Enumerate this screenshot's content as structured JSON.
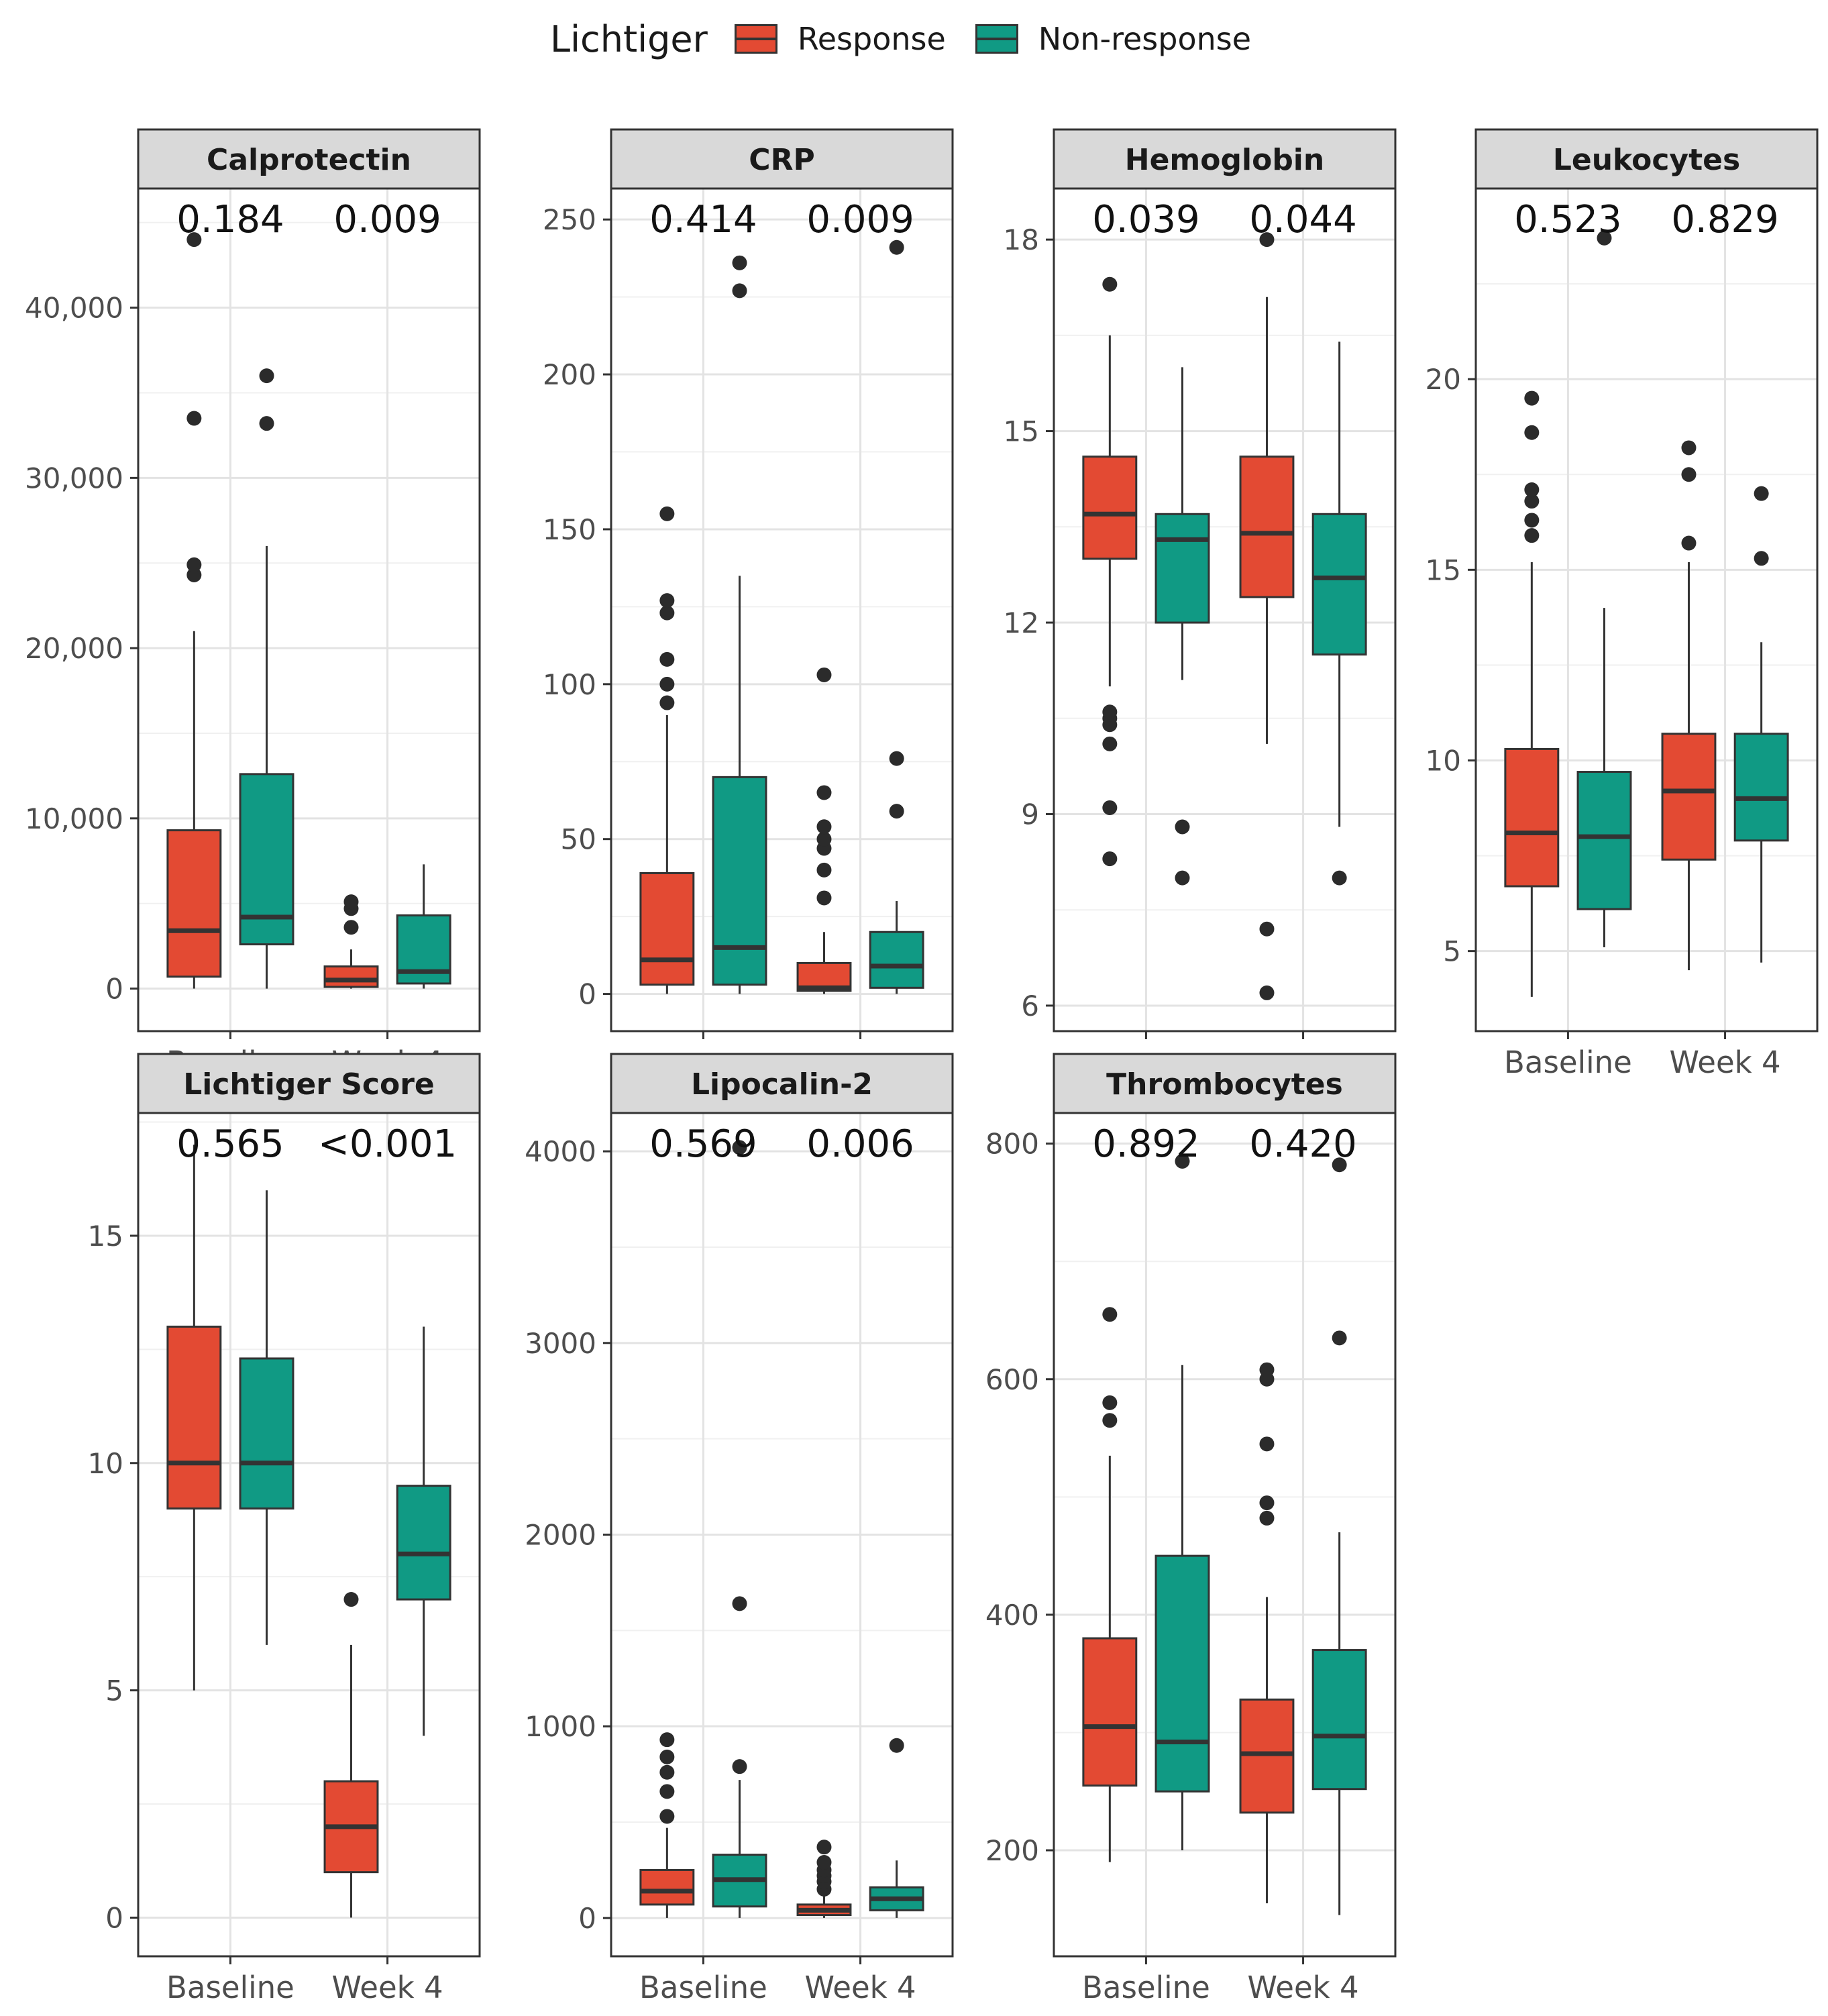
{
  "legend": {
    "title": "Lichtiger",
    "items": [
      {
        "label": "Response",
        "color": "#E34A33"
      },
      {
        "label": "Non-response",
        "color": "#109A84"
      }
    ]
  },
  "chart_data": [
    {
      "type": "box",
      "title": "Calprotectin",
      "categories": [
        "Baseline",
        "Week 4"
      ],
      "p_values": [
        "0.184",
        "0.009"
      ],
      "ylim": [
        -2500,
        47000
      ],
      "y_ticks": [
        0,
        10000,
        20000,
        30000,
        40000
      ],
      "y_tick_labels": [
        "0",
        "10,000",
        "20,000",
        "30,000",
        "40,000"
      ],
      "series": [
        {
          "name": "Response",
          "boxes": [
            {
              "low": 0,
              "q1": 700,
              "median": 3400,
              "q3": 9300,
              "high": 21000,
              "outliers": [
                24300,
                24900,
                33500,
                44000
              ]
            },
            {
              "low": 0,
              "q1": 100,
              "median": 500,
              "q3": 1300,
              "high": 2300,
              "outliers": [
                3600,
                4700,
                5100
              ]
            }
          ]
        },
        {
          "name": "Non-response",
          "boxes": [
            {
              "low": 0,
              "q1": 2600,
              "median": 4200,
              "q3": 12600,
              "high": 26000,
              "outliers": [
                33200,
                36000
              ]
            },
            {
              "low": 0,
              "q1": 300,
              "median": 1000,
              "q3": 4300,
              "high": 7300,
              "outliers": []
            }
          ]
        }
      ]
    },
    {
      "type": "box",
      "title": "CRP",
      "categories": [
        "Baseline",
        "Week 4"
      ],
      "p_values": [
        "0.414",
        "0.009"
      ],
      "ylim": [
        -12,
        260
      ],
      "y_ticks": [
        0,
        50,
        100,
        150,
        200,
        250
      ],
      "y_tick_labels": [
        "0",
        "50",
        "100",
        "150",
        "200",
        "250"
      ],
      "series": [
        {
          "name": "Response",
          "boxes": [
            {
              "low": 0,
              "q1": 3,
              "median": 11,
              "q3": 39,
              "high": 90,
              "outliers": [
                94,
                100,
                108,
                123,
                127,
                155
              ]
            },
            {
              "low": 0,
              "q1": 1,
              "median": 2,
              "q3": 10,
              "high": 20,
              "outliers": [
                31,
                40,
                47,
                50,
                54,
                65,
                103
              ]
            }
          ]
        },
        {
          "name": "Non-response",
          "boxes": [
            {
              "low": 0,
              "q1": 3,
              "median": 15,
              "q3": 70,
              "high": 135,
              "outliers": [
                227,
                236
              ]
            },
            {
              "low": 0,
              "q1": 2,
              "median": 9,
              "q3": 20,
              "high": 30,
              "outliers": [
                59,
                76,
                241
              ]
            }
          ]
        }
      ]
    },
    {
      "type": "box",
      "title": "Hemoglobin",
      "categories": [
        "Baseline",
        "Week 4"
      ],
      "p_values": [
        "0.039",
        "0.044"
      ],
      "ylim": [
        5.6,
        18.8
      ],
      "y_ticks": [
        6,
        9,
        12,
        15,
        18
      ],
      "y_tick_labels": [
        "6",
        "9",
        "12",
        "15",
        "18"
      ],
      "series": [
        {
          "name": "Response",
          "boxes": [
            {
              "low": 11.0,
              "q1": 13.0,
              "median": 13.7,
              "q3": 14.6,
              "high": 16.5,
              "outliers": [
                8.3,
                9.1,
                10.1,
                10.4,
                10.5,
                10.6,
                17.3
              ]
            },
            {
              "low": 10.1,
              "q1": 12.4,
              "median": 13.4,
              "q3": 14.6,
              "high": 17.1,
              "outliers": [
                6.2,
                7.2,
                18.0
              ]
            }
          ]
        },
        {
          "name": "Non-response",
          "boxes": [
            {
              "low": 11.1,
              "q1": 12.0,
              "median": 13.3,
              "q3": 13.7,
              "high": 16.0,
              "outliers": [
                8.0,
                8.8
              ]
            },
            {
              "low": 8.8,
              "q1": 11.5,
              "median": 12.7,
              "q3": 13.7,
              "high": 16.4,
              "outliers": [
                8.0
              ]
            }
          ]
        }
      ]
    },
    {
      "type": "box",
      "title": "Leukocytes",
      "categories": [
        "Baseline",
        "Week 4"
      ],
      "p_values": [
        "0.523",
        "0.829"
      ],
      "ylim": [
        2.9,
        25.0
      ],
      "y_ticks": [
        5,
        10,
        15,
        20
      ],
      "y_tick_labels": [
        "5",
        "10",
        "15",
        "20"
      ],
      "series": [
        {
          "name": "Response",
          "boxes": [
            {
              "low": 3.8,
              "q1": 6.7,
              "median": 8.1,
              "q3": 10.3,
              "high": 15.2,
              "outliers": [
                15.9,
                16.3,
                16.8,
                17.1,
                18.6,
                19.5
              ]
            },
            {
              "low": 4.5,
              "q1": 7.4,
              "median": 9.2,
              "q3": 10.7,
              "high": 15.2,
              "outliers": [
                15.7,
                17.5,
                18.2
              ]
            }
          ]
        },
        {
          "name": "Non-response",
          "boxes": [
            {
              "low": 5.1,
              "q1": 6.1,
              "median": 8.0,
              "q3": 9.7,
              "high": 14.0,
              "outliers": [
                23.7
              ]
            },
            {
              "low": 4.7,
              "q1": 7.9,
              "median": 9.0,
              "q3": 10.7,
              "high": 13.1,
              "outliers": [
                15.3,
                17.0
              ]
            }
          ]
        }
      ]
    },
    {
      "type": "box",
      "title": "Lichtiger Score",
      "categories": [
        "Baseline",
        "Week 4"
      ],
      "p_values": [
        "0.565",
        "<0.001"
      ],
      "ylim": [
        -0.85,
        17.7
      ],
      "y_ticks": [
        0,
        5,
        10,
        15
      ],
      "y_tick_labels": [
        "0",
        "5",
        "10",
        "15"
      ],
      "series": [
        {
          "name": "Response",
          "boxes": [
            {
              "low": 5,
              "q1": 9,
              "median": 10,
              "q3": 13,
              "high": 17,
              "outliers": []
            },
            {
              "low": 0,
              "q1": 1,
              "median": 2,
              "q3": 3,
              "high": 6,
              "outliers": [
                7
              ]
            }
          ]
        },
        {
          "name": "Non-response",
          "boxes": [
            {
              "low": 6,
              "q1": 9,
              "median": 10,
              "q3": 12.3,
              "high": 16,
              "outliers": []
            },
            {
              "low": 4,
              "q1": 7,
              "median": 8,
              "q3": 9.5,
              "high": 13,
              "outliers": []
            }
          ]
        }
      ]
    },
    {
      "type": "box",
      "title": "Lipocalin-2",
      "categories": [
        "Baseline",
        "Week 4"
      ],
      "p_values": [
        "0.569",
        "0.006"
      ],
      "ylim": [
        -200,
        4200
      ],
      "y_ticks": [
        0,
        1000,
        2000,
        3000,
        4000
      ],
      "y_tick_labels": [
        "0",
        "1000",
        "2000",
        "3000",
        "4000"
      ],
      "series": [
        {
          "name": "Response",
          "boxes": [
            {
              "low": 0,
              "q1": 70,
              "median": 140,
              "q3": 250,
              "high": 470,
              "outliers": [
                530,
                660,
                760,
                840,
                930
              ]
            },
            {
              "low": 0,
              "q1": 15,
              "median": 40,
              "q3": 70,
              "high": 120,
              "outliers": [
                150,
                190,
                220,
                250,
                290,
                370
              ]
            }
          ]
        },
        {
          "name": "Non-response",
          "boxes": [
            {
              "low": 0,
              "q1": 60,
              "median": 200,
              "q3": 330,
              "high": 720,
              "outliers": [
                790,
                1640,
                4020
              ]
            },
            {
              "low": 0,
              "q1": 40,
              "median": 100,
              "q3": 160,
              "high": 300,
              "outliers": [
                900
              ]
            }
          ]
        }
      ]
    },
    {
      "type": "box",
      "title": "Thrombocytes",
      "categories": [
        "Baseline",
        "Week 4"
      ],
      "p_values": [
        "0.892",
        "0.420"
      ],
      "ylim": [
        110,
        826
      ],
      "y_ticks": [
        200,
        400,
        600,
        800
      ],
      "y_tick_labels": [
        "200",
        "400",
        "600",
        "800"
      ],
      "series": [
        {
          "name": "Response",
          "boxes": [
            {
              "low": 190,
              "q1": 255,
              "median": 305,
              "q3": 380,
              "high": 535,
              "outliers": [
                565,
                580,
                655
              ]
            },
            {
              "low": 155,
              "q1": 232,
              "median": 282,
              "q3": 328,
              "high": 415,
              "outliers": [
                482,
                495,
                545,
                600,
                608
              ]
            }
          ]
        },
        {
          "name": "Non-response",
          "boxes": [
            {
              "low": 200,
              "q1": 250,
              "median": 292,
              "q3": 450,
              "high": 612,
              "outliers": [
                785
              ]
            },
            {
              "low": 145,
              "q1": 252,
              "median": 297,
              "q3": 370,
              "high": 470,
              "outliers": [
                635,
                782
              ]
            }
          ]
        }
      ]
    }
  ]
}
